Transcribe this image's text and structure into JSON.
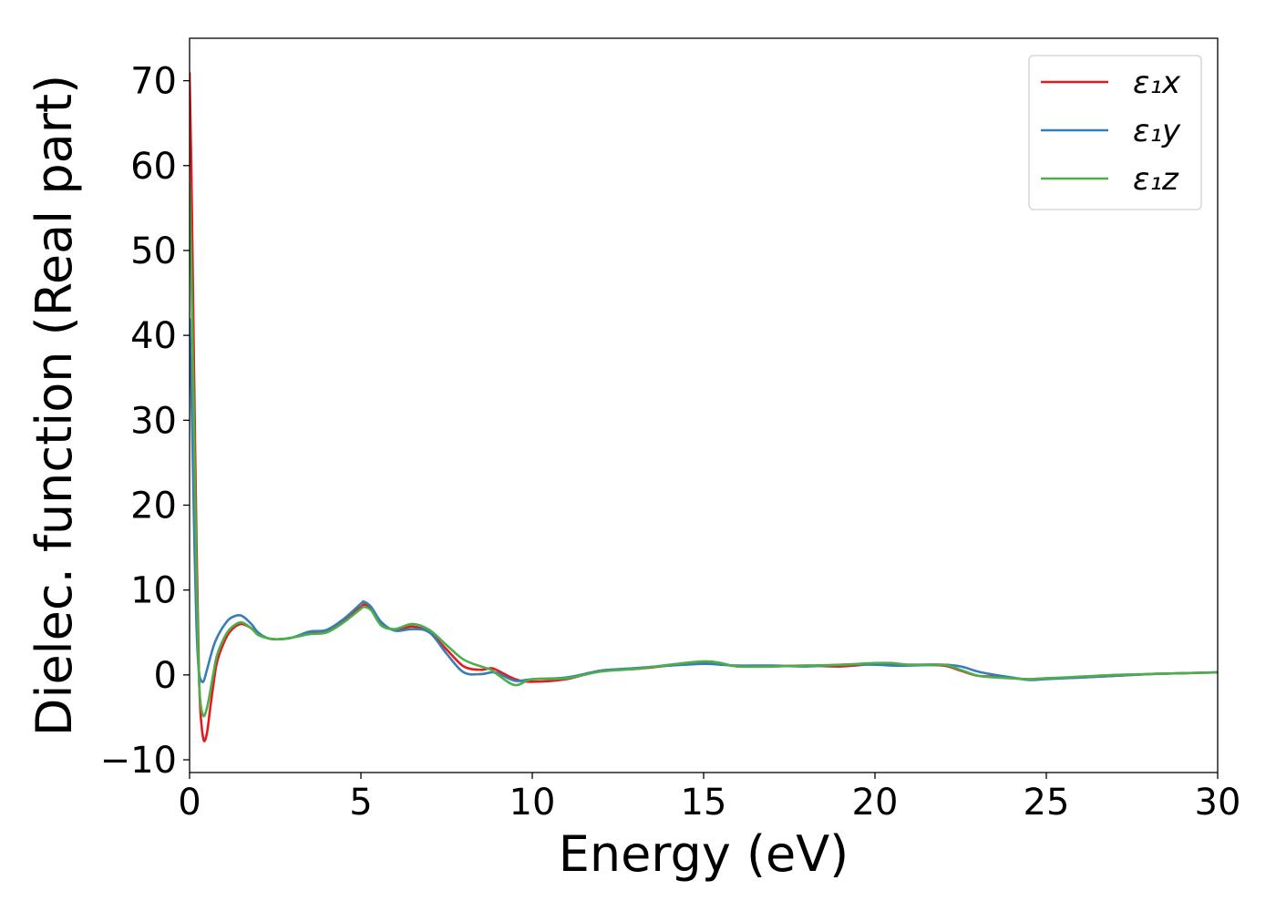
{
  "chart_data": {
    "type": "line",
    "xlabel": "Energy (eV)",
    "ylabel": "Dielec. function (Real part)",
    "xlim": [
      0,
      30
    ],
    "ylim": [
      -11.5,
      75
    ],
    "xticks": [
      0,
      5,
      10,
      15,
      20,
      25,
      30
    ],
    "xtick_labels": [
      "0",
      "5",
      "10",
      "15",
      "20",
      "25",
      "30"
    ],
    "yticks": [
      -10,
      0,
      10,
      20,
      30,
      40,
      50,
      60,
      70
    ],
    "ytick_labels": [
      "−10",
      "0",
      "10",
      "20",
      "30",
      "40",
      "50",
      "60",
      "70"
    ],
    "grid": false,
    "legend_position": "top-right",
    "series": [
      {
        "name": "ε₁x",
        "color": "#e41a1c",
        "x": [
          0,
          0.05,
          0.1,
          0.15,
          0.2,
          0.25,
          0.3,
          0.4,
          0.5,
          0.6,
          0.7,
          0.8,
          1.0,
          1.2,
          1.5,
          1.8,
          2.0,
          2.3,
          2.6,
          3.0,
          3.5,
          4.0,
          4.5,
          5.0,
          5.1,
          5.3,
          5.6,
          6.0,
          6.5,
          7.0,
          7.5,
          8.0,
          8.5,
          8.8,
          9.0,
          9.5,
          10.0,
          11.0,
          12.0,
          13.0,
          14.0,
          15.0,
          15.5,
          16.0,
          17.0,
          18.0,
          19.0,
          20.0,
          20.5,
          21.0,
          22.0,
          22.5,
          23.0,
          23.5,
          24.0,
          24.5,
          25.0,
          26.0,
          27.0,
          28.0,
          29.0,
          30.0
        ],
        "y": [
          71,
          60,
          45,
          30,
          16,
          5,
          -3,
          -7.5,
          -7,
          -4,
          -1,
          1.5,
          3.8,
          5.2,
          6,
          5.5,
          4.8,
          4.3,
          4.2,
          4.4,
          5,
          5.2,
          6.5,
          8,
          8.3,
          7.8,
          6,
          5.3,
          5.7,
          5,
          3,
          1,
          0.6,
          0.8,
          0.5,
          -0.5,
          -0.8,
          -0.5,
          0.5,
          0.7,
          1.1,
          1.4,
          1.3,
          1.0,
          1.0,
          1.1,
          1.0,
          1.3,
          1.2,
          1.2,
          1.1,
          0.5,
          -0.1,
          -0.2,
          -0.4,
          -0.5,
          -0.4,
          -0.3,
          -0.1,
          0.1,
          0.2,
          0.3
        ]
      },
      {
        "name": "ε₁y",
        "color": "#377eb8",
        "x": [
          0,
          0.05,
          0.1,
          0.15,
          0.2,
          0.25,
          0.3,
          0.4,
          0.5,
          0.6,
          0.7,
          0.8,
          1.0,
          1.2,
          1.5,
          1.8,
          2.0,
          2.3,
          2.6,
          3.0,
          3.5,
          4.0,
          4.5,
          5.0,
          5.1,
          5.3,
          5.6,
          6.0,
          6.5,
          7.0,
          7.5,
          8.0,
          8.5,
          8.8,
          9.0,
          9.5,
          10.0,
          11.0,
          12.0,
          13.0,
          14.0,
          15.0,
          15.5,
          16.0,
          17.0,
          18.0,
          19.0,
          20.0,
          20.5,
          21.0,
          22.0,
          22.5,
          23.0,
          23.5,
          24.0,
          24.5,
          25.0,
          26.0,
          27.0,
          28.0,
          29.0,
          30.0
        ],
        "y": [
          42,
          34,
          24,
          14,
          6,
          1.5,
          -0.3,
          -0.8,
          0.5,
          2,
          3.4,
          4.4,
          5.8,
          6.7,
          7,
          6,
          5,
          4.3,
          4.2,
          4.4,
          5.1,
          5.3,
          6.6,
          8.4,
          8.6,
          8.0,
          6.2,
          5.2,
          5.4,
          5.0,
          2.5,
          0.3,
          0.1,
          0.3,
          0.2,
          -0.7,
          -0.5,
          -0.3,
          0.5,
          0.8,
          1.1,
          1.3,
          1.2,
          1.1,
          1.1,
          1.0,
          1.2,
          1.2,
          1.1,
          1.1,
          1.2,
          1.0,
          0.4,
          0,
          -0.3,
          -0.6,
          -0.5,
          -0.3,
          -0.1,
          0.1,
          0.2,
          0.3
        ]
      },
      {
        "name": "ε₁z",
        "color": "#4daf4a",
        "x": [
          0,
          0.05,
          0.1,
          0.15,
          0.2,
          0.25,
          0.3,
          0.4,
          0.5,
          0.6,
          0.7,
          0.8,
          1.0,
          1.2,
          1.5,
          1.8,
          2.0,
          2.3,
          2.6,
          3.0,
          3.5,
          4.0,
          4.5,
          5.0,
          5.1,
          5.3,
          5.6,
          6.0,
          6.5,
          7.0,
          7.5,
          8.0,
          8.5,
          8.8,
          9.0,
          9.5,
          10.0,
          11.0,
          12.0,
          13.0,
          14.0,
          15.0,
          15.5,
          16.0,
          17.0,
          18.0,
          19.0,
          20.0,
          20.5,
          21.0,
          22.0,
          22.5,
          23.0,
          23.5,
          24.0,
          24.5,
          25.0,
          26.0,
          27.0,
          28.0,
          29.0,
          30.0
        ],
        "y": [
          58,
          48,
          36,
          24,
          12,
          3,
          -2.5,
          -4.8,
          -4,
          -2,
          0.3,
          2.3,
          4.3,
          5.5,
          6.2,
          5.5,
          4.7,
          4.3,
          4.2,
          4.4,
          4.8,
          5.0,
          6.2,
          7.8,
          8.0,
          7.6,
          5.8,
          5.4,
          6.0,
          5.3,
          3.5,
          1.8,
          1.0,
          0.6,
          0,
          -1.2,
          -0.5,
          -0.4,
          0.4,
          0.7,
          1.2,
          1.6,
          1.4,
          1.0,
          1.0,
          1.1,
          1.2,
          1.4,
          1.4,
          1.2,
          1.2,
          0.6,
          -0.1,
          -0.3,
          -0.4,
          -0.5,
          -0.4,
          -0.2,
          0,
          0.1,
          0.2,
          0.3
        ]
      }
    ]
  }
}
